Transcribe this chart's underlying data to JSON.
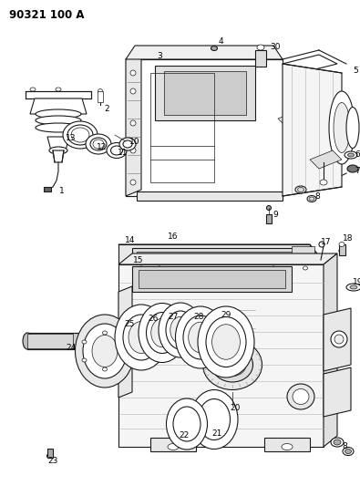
{
  "title": "90321 100 A",
  "bg_color": "#ffffff",
  "line_color": "#1a1a1a",
  "figsize": [
    3.95,
    5.33
  ],
  "dpi": 100,
  "label_fontsize": 7,
  "label_color": "#000000",
  "callout_fontsize": 6.5
}
